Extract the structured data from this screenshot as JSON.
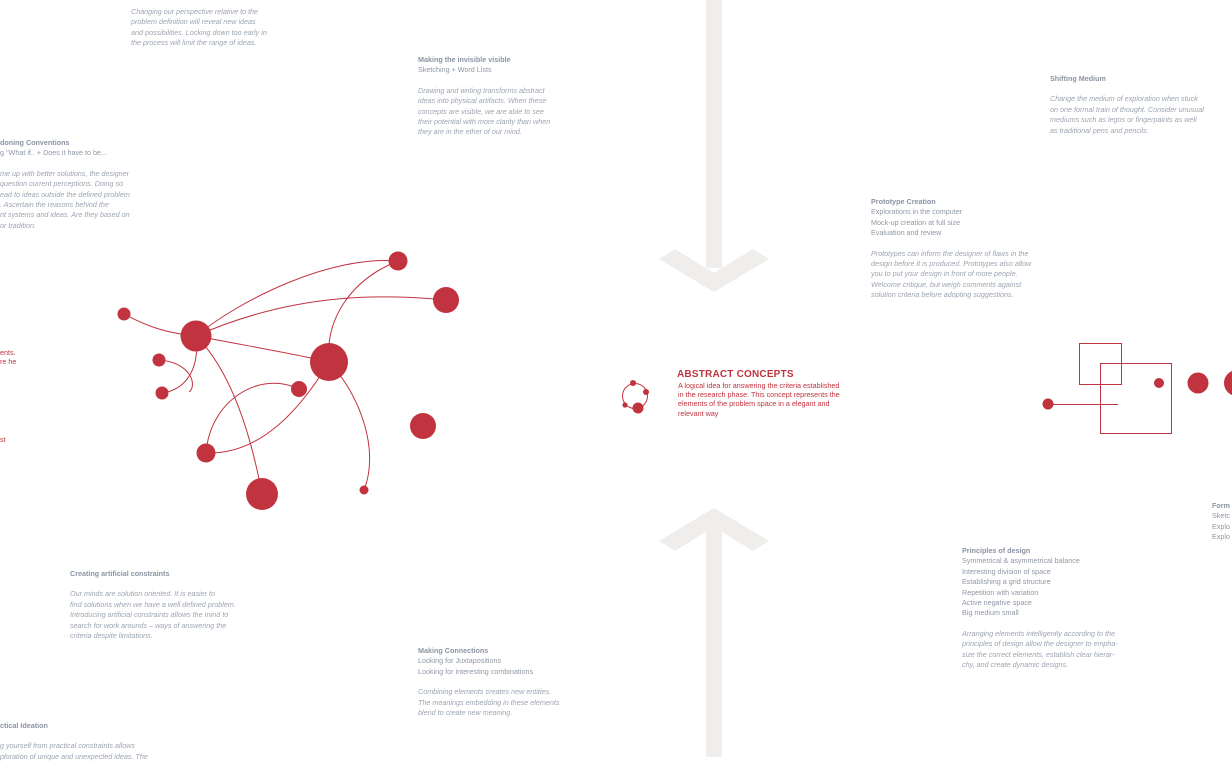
{
  "top_center": {
    "lines": [
      "Changing our perspective relative to the",
      "problem definition will reveal new ideas",
      "and possibilities. Locking down too early in",
      "the process will limit the range of ideas."
    ]
  },
  "making_invisible": {
    "title": "Making the invisible visible",
    "subtitle": "Sketching + Word Lists",
    "lines": [
      "Drawing and writing transforms abstract",
      "ideas into physical artifacts. When these",
      "concepts are visible, we are able to see",
      "their potential with more clarity than when",
      "they are in the ether of our mind."
    ]
  },
  "shifting_medium": {
    "title": "Shifting Medium",
    "lines": [
      "Change the medium of exploration when stuck",
      "on one formal train of thought. Consider unusual",
      "mediums such as legos or fingerpaints as well",
      "as traditional pens and pencils."
    ]
  },
  "abandoning": {
    "title": "doning Conventions",
    "subtitle": "g \"What if.. + Does it have to be...",
    "lines": [
      "me up with better solutions, the designer",
      "question current perceptions. Doing so",
      "ead to ideas outside the defined problem",
      ". Ascertain the reasons behind the",
      "nt systems and ideas. Are they based on",
      " or tradition."
    ]
  },
  "prototype": {
    "title": "Prototype Creation",
    "sub_lines": [
      "Explorations in the computer",
      "Mock-up creation at full size",
      "Evaluation and review"
    ],
    "lines": [
      "Prototypes can inform the designer of flaws in the",
      "design before it is produced. Prototypes also allow",
      "you to put your design in front of more people.",
      "Welcome critique, but weigh comments against",
      "solution criteria before adopting suggestions."
    ]
  },
  "left_red_fragments": [
    "ents.",
    "re he",
    "st"
  ],
  "center": {
    "title": "ABSTRACT CONCEPTS",
    "lines": [
      "A logical idea for answering the criteria established",
      "in the research phase. This concept represents the",
      "elements of the problem space in a elegant and",
      "relevant way"
    ]
  },
  "right_edge": {
    "title": "Form",
    "lines": [
      "Sketc",
      "Explo",
      "Explo"
    ]
  },
  "artificial_constraints": {
    "title": "Creating artificial constraints",
    "lines": [
      "Our minds are solution oriented. It is  easier to",
      "find solutions when we have a well defined problem.",
      "Introducing artificial constraints allows the mind to",
      "search for work arounds – ways of answering the",
      "criteria despite limitations."
    ]
  },
  "principles": {
    "title": "Principles of design",
    "sub_lines": [
      "Symmetrical & asymmetrical balance",
      "Interesting division of space",
      "Establishing a grid structure",
      "Repetition with variation",
      "Active negative space",
      "Big medium small"
    ],
    "lines": [
      "Arranging elements intelligently according to the",
      "principles of design allow the designer to empha-",
      "size the correct elements, establish clear hierar-",
      "chy, and create dynamic designs."
    ]
  },
  "making_connections": {
    "title": "Making Connections",
    "sub_lines": [
      "Looking for Juxtapositions",
      "Looking for interesting combinations"
    ],
    "lines": [
      "Combining elements creates new entities.",
      "The meanings embedding in these elements",
      "blend to create new meaning."
    ]
  },
  "impractical": {
    "title": "ctical Ideation",
    "lines": [
      "g yourself from practical constraints allows",
      "ploration of unique and unexpected ideas. The"
    ]
  },
  "colors": {
    "accent_red": "#c1333f",
    "body_gray": "#8f98a6",
    "arrow_gray": "#efeeec"
  }
}
